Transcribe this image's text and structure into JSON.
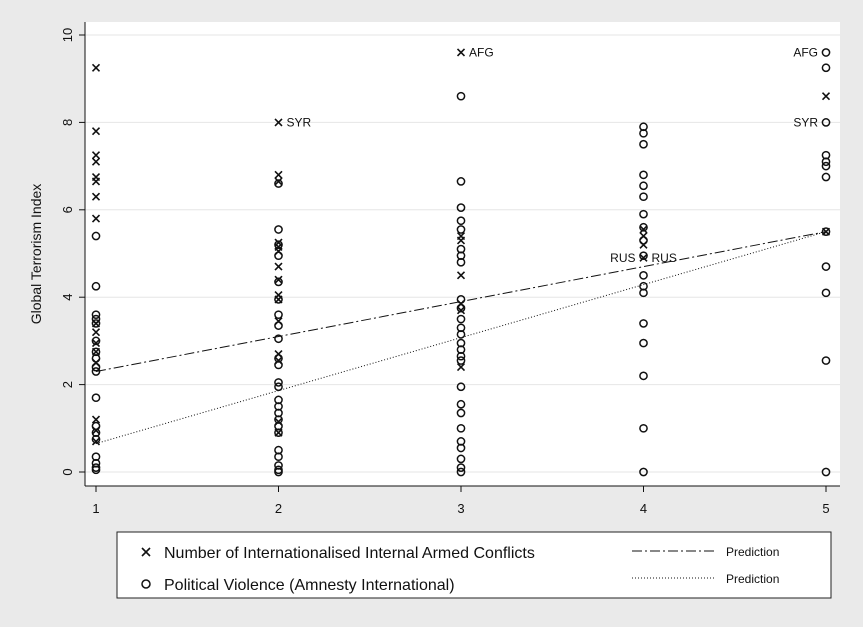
{
  "chart_data": {
    "type": "scatter",
    "title": "",
    "xlabel": "",
    "ylabel": "Global Terrorism Index",
    "xlim": [
      1,
      5
    ],
    "ylim": [
      0,
      10
    ],
    "xticks": [
      1,
      2,
      3,
      4,
      5
    ],
    "yticks": [
      0,
      2,
      4,
      6,
      8,
      10
    ],
    "grid": "horizontal",
    "legend_position": "bottom",
    "series": [
      {
        "name": "Number of Internationalised Internal Armed Conflicts",
        "marker": "x",
        "points": [
          [
            1,
            9.25
          ],
          [
            1,
            7.8
          ],
          [
            1,
            7.25
          ],
          [
            1,
            7.1
          ],
          [
            1,
            6.75
          ],
          [
            1,
            6.65
          ],
          [
            1,
            6.3
          ],
          [
            1,
            5.8
          ],
          [
            1,
            3.4
          ],
          [
            1,
            3.2
          ],
          [
            1,
            2.95
          ],
          [
            1,
            2.75
          ],
          [
            1,
            2.5
          ],
          [
            1,
            1.2
          ],
          [
            1,
            0.95
          ],
          [
            1,
            0.7
          ],
          [
            2,
            8.0
          ],
          [
            2,
            6.8
          ],
          [
            2,
            6.65
          ],
          [
            2,
            5.25
          ],
          [
            2,
            5.15
          ],
          [
            2,
            5.05
          ],
          [
            2,
            4.7
          ],
          [
            2,
            4.4
          ],
          [
            2,
            4.05
          ],
          [
            2,
            3.95
          ],
          [
            2,
            3.45
          ],
          [
            2,
            2.7
          ],
          [
            2,
            2.55
          ],
          [
            2,
            1.15
          ],
          [
            2,
            0.9
          ],
          [
            3,
            9.6
          ],
          [
            3,
            5.4
          ],
          [
            3,
            5.3
          ],
          [
            3,
            4.5
          ],
          [
            3,
            3.85
          ],
          [
            3,
            3.7
          ],
          [
            3,
            2.4
          ],
          [
            4,
            5.55
          ],
          [
            4,
            5.4
          ],
          [
            4,
            5.2
          ],
          [
            4,
            4.9
          ],
          [
            5,
            8.6
          ],
          [
            5,
            5.5
          ]
        ]
      },
      {
        "name": "Political Violence (Amnesty International)",
        "marker": "o",
        "points": [
          [
            1,
            5.4
          ],
          [
            1,
            4.25
          ],
          [
            1,
            3.6
          ],
          [
            1,
            3.5
          ],
          [
            1,
            3.4
          ],
          [
            1,
            3.0
          ],
          [
            1,
            2.75
          ],
          [
            1,
            2.6
          ],
          [
            1,
            2.4
          ],
          [
            1,
            2.3
          ],
          [
            1,
            1.7
          ],
          [
            1,
            1.05
          ],
          [
            1,
            0.9
          ],
          [
            1,
            0.75
          ],
          [
            1,
            0.35
          ],
          [
            1,
            0.2
          ],
          [
            1,
            0.1
          ],
          [
            1,
            0.05
          ],
          [
            2,
            6.6
          ],
          [
            2,
            5.55
          ],
          [
            2,
            5.2
          ],
          [
            2,
            4.95
          ],
          [
            2,
            4.35
          ],
          [
            2,
            3.95
          ],
          [
            2,
            3.6
          ],
          [
            2,
            3.35
          ],
          [
            2,
            3.05
          ],
          [
            2,
            2.6
          ],
          [
            2,
            2.45
          ],
          [
            2,
            2.05
          ],
          [
            2,
            1.95
          ],
          [
            2,
            1.65
          ],
          [
            2,
            1.5
          ],
          [
            2,
            1.35
          ],
          [
            2,
            1.2
          ],
          [
            2,
            1.05
          ],
          [
            2,
            0.9
          ],
          [
            2,
            0.5
          ],
          [
            2,
            0.35
          ],
          [
            2,
            0.15
          ],
          [
            2,
            0.05
          ],
          [
            2,
            0.0
          ],
          [
            3,
            8.6
          ],
          [
            3,
            6.65
          ],
          [
            3,
            6.05
          ],
          [
            3,
            5.75
          ],
          [
            3,
            5.55
          ],
          [
            3,
            5.1
          ],
          [
            3,
            4.95
          ],
          [
            3,
            4.8
          ],
          [
            3,
            3.95
          ],
          [
            3,
            3.75
          ],
          [
            3,
            3.5
          ],
          [
            3,
            3.3
          ],
          [
            3,
            3.15
          ],
          [
            3,
            2.95
          ],
          [
            3,
            2.8
          ],
          [
            3,
            2.65
          ],
          [
            3,
            2.55
          ],
          [
            3,
            1.95
          ],
          [
            3,
            1.55
          ],
          [
            3,
            1.35
          ],
          [
            3,
            1.0
          ],
          [
            3,
            0.7
          ],
          [
            3,
            0.55
          ],
          [
            3,
            0.3
          ],
          [
            3,
            0.1
          ],
          [
            3,
            0.0
          ],
          [
            4,
            7.9
          ],
          [
            4,
            7.75
          ],
          [
            4,
            7.5
          ],
          [
            4,
            6.8
          ],
          [
            4,
            6.55
          ],
          [
            4,
            6.3
          ],
          [
            4,
            5.9
          ],
          [
            4,
            5.6
          ],
          [
            4,
            5.3
          ],
          [
            4,
            4.95
          ],
          [
            4,
            4.5
          ],
          [
            4,
            4.25
          ],
          [
            4,
            4.1
          ],
          [
            4,
            3.4
          ],
          [
            4,
            2.95
          ],
          [
            4,
            2.2
          ],
          [
            4,
            1.0
          ],
          [
            4,
            0.0
          ],
          [
            5,
            9.6
          ],
          [
            5,
            9.25
          ],
          [
            5,
            8.0
          ],
          [
            5,
            7.25
          ],
          [
            5,
            7.1
          ],
          [
            5,
            7.0
          ],
          [
            5,
            6.75
          ],
          [
            5,
            5.5
          ],
          [
            5,
            4.7
          ],
          [
            5,
            4.1
          ],
          [
            5,
            2.55
          ],
          [
            5,
            0.0
          ]
        ]
      }
    ],
    "fit_lines": [
      {
        "name": "Prediction",
        "style": "dash-dot",
        "from": [
          1,
          2.3
        ],
        "to": [
          5,
          5.5
        ]
      },
      {
        "name": "Prediction",
        "style": "dotted",
        "from": [
          1,
          0.65
        ],
        "to": [
          5,
          5.5
        ]
      }
    ],
    "annotations": [
      {
        "text": "AFG",
        "x": 3,
        "y": 9.6,
        "side": "right"
      },
      {
        "text": "SYR",
        "x": 2,
        "y": 8.0,
        "side": "right"
      },
      {
        "text": "AFG",
        "x": 5,
        "y": 9.6,
        "side": "left"
      },
      {
        "text": "SYR",
        "x": 5,
        "y": 8.0,
        "side": "left"
      },
      {
        "text": "RUS",
        "x": 4,
        "y": 4.9,
        "side": "left"
      },
      {
        "text": "RUS",
        "x": 4,
        "y": 4.9,
        "side": "right"
      }
    ]
  }
}
